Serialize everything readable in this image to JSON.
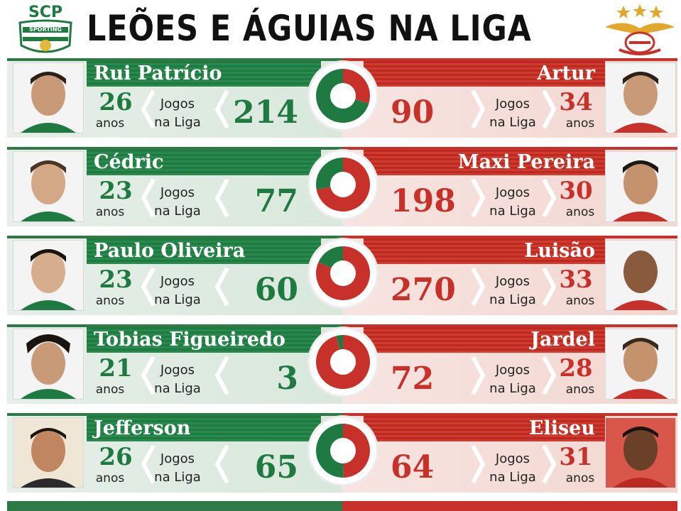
{
  "header": {
    "title": "LEÕES E ÁGUIAS NA LIGA",
    "logo_left_text": "SCP",
    "logo_left_sub": "SPORTING"
  },
  "labels": {
    "jogos_line1": "Jogos",
    "jogos_line2": "na Liga",
    "anos": "anos"
  },
  "colors": {
    "sporting": "#1f7a42",
    "benfica": "#c8302a"
  },
  "rows": [
    {
      "left": {
        "name": "Rui Patrício",
        "age": "26",
        "games": "214"
      },
      "right": {
        "name": "Artur",
        "age": "34",
        "games": "90"
      },
      "share_left": 0.704
    },
    {
      "left": {
        "name": "Cédric",
        "age": "23",
        "games": "77"
      },
      "right": {
        "name": "Maxi Pereira",
        "age": "30",
        "games": "198"
      },
      "share_left": 0.28
    },
    {
      "left": {
        "name": "Paulo Oliveira",
        "age": "23",
        "games": "60"
      },
      "right": {
        "name": "Luisão",
        "age": "33",
        "games": "270"
      },
      "share_left": 0.182
    },
    {
      "left": {
        "name": "Tobias Figueiredo",
        "age": "21",
        "games": "3"
      },
      "right": {
        "name": "Jardel",
        "age": "28",
        "games": "72"
      },
      "share_left": 0.04
    },
    {
      "left": {
        "name": "Jefferson",
        "age": "26",
        "games": "65"
      },
      "right": {
        "name": "Eliseu",
        "age": "31",
        "games": "64"
      },
      "share_left": 0.504
    }
  ]
}
